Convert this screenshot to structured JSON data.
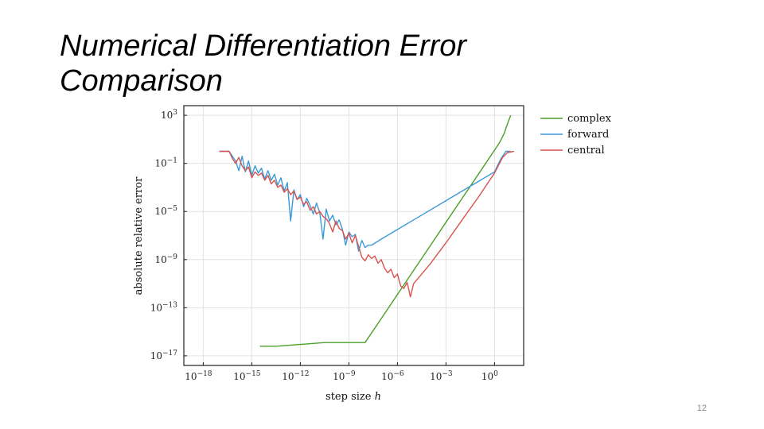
{
  "slide": {
    "title": "Numerical Differentiation Error Comparison",
    "page_number": "12"
  },
  "chart_data": {
    "type": "line",
    "title": "",
    "xlabel": "step size h",
    "ylabel": "absolute relative error",
    "xscale": "log",
    "yscale": "log",
    "xlim_exp": [
      -19.2,
      1.8
    ],
    "ylim_exp": [
      -17.8,
      3.8
    ],
    "x_ticks": [
      {
        "exp": -18,
        "label": "10",
        "sup": "−18"
      },
      {
        "exp": -15,
        "label": "10",
        "sup": "−15"
      },
      {
        "exp": -12,
        "label": "10",
        "sup": "−12"
      },
      {
        "exp": -9,
        "label": "10",
        "sup": "−9"
      },
      {
        "exp": -6,
        "label": "10",
        "sup": "−6"
      },
      {
        "exp": -3,
        "label": "10",
        "sup": "−3"
      },
      {
        "exp": 0,
        "label": "10",
        "sup": "0"
      }
    ],
    "y_ticks": [
      {
        "exp": 3,
        "label": "10",
        "sup": "3"
      },
      {
        "exp": -1,
        "label": "10",
        "sup": "−1"
      },
      {
        "exp": -5,
        "label": "10",
        "sup": "−5"
      },
      {
        "exp": -9,
        "label": "10",
        "sup": "−9"
      },
      {
        "exp": -13,
        "label": "10",
        "sup": "−13"
      },
      {
        "exp": -17,
        "label": "10",
        "sup": "−17"
      }
    ],
    "grid": true,
    "legend_position": "outside-top-right",
    "series": [
      {
        "name": "complex",
        "color": "#4aa02c",
        "points": [
          [
            -14.5,
            -16.2
          ],
          [
            -13.5,
            -16.2
          ],
          [
            -12.5,
            -16.1
          ],
          [
            -11.5,
            -16.0
          ],
          [
            -10.5,
            -15.9
          ],
          [
            -9.5,
            -15.9
          ],
          [
            -8.5,
            -15.9
          ],
          [
            -8.0,
            -15.9
          ],
          [
            -7.0,
            -13.9
          ],
          [
            -6.0,
            -11.9
          ],
          [
            -5.0,
            -9.9
          ],
          [
            -4.0,
            -7.9
          ],
          [
            -3.0,
            -5.9
          ],
          [
            -2.0,
            -3.9
          ],
          [
            -1.0,
            -1.9
          ],
          [
            0.0,
            0.1
          ],
          [
            0.3,
            0.7
          ],
          [
            0.6,
            1.5
          ],
          [
            0.8,
            2.3
          ],
          [
            1.0,
            3.0
          ]
        ]
      },
      {
        "name": "forward",
        "color": "#3a9ad9",
        "points": [
          [
            -17.0,
            0.0
          ],
          [
            -16.4,
            0.0
          ],
          [
            -16.2,
            -0.4
          ],
          [
            -16.0,
            -0.8
          ],
          [
            -15.8,
            -1.6
          ],
          [
            -15.6,
            -0.4
          ],
          [
            -15.4,
            -1.7
          ],
          [
            -15.2,
            -0.8
          ],
          [
            -15.0,
            -2.0
          ],
          [
            -14.8,
            -1.2
          ],
          [
            -14.6,
            -1.8
          ],
          [
            -14.4,
            -1.4
          ],
          [
            -14.2,
            -2.3
          ],
          [
            -14.0,
            -1.6
          ],
          [
            -13.8,
            -2.4
          ],
          [
            -13.6,
            -1.9
          ],
          [
            -13.4,
            -2.8
          ],
          [
            -13.2,
            -2.2
          ],
          [
            -13.0,
            -3.3
          ],
          [
            -12.8,
            -2.6
          ],
          [
            -12.6,
            -5.8
          ],
          [
            -12.4,
            -3.2
          ],
          [
            -12.2,
            -4.0
          ],
          [
            -12.0,
            -3.6
          ],
          [
            -11.8,
            -4.6
          ],
          [
            -11.6,
            -3.9
          ],
          [
            -11.4,
            -4.5
          ],
          [
            -11.2,
            -5.2
          ],
          [
            -11.0,
            -4.3
          ],
          [
            -10.8,
            -5.1
          ],
          [
            -10.6,
            -7.3
          ],
          [
            -10.4,
            -4.8
          ],
          [
            -10.2,
            -5.8
          ],
          [
            -10.0,
            -5.3
          ],
          [
            -9.8,
            -6.1
          ],
          [
            -9.6,
            -5.7
          ],
          [
            -9.4,
            -6.5
          ],
          [
            -9.2,
            -7.8
          ],
          [
            -9.0,
            -6.7
          ],
          [
            -8.8,
            -7.1
          ],
          [
            -8.6,
            -6.9
          ],
          [
            -8.4,
            -8.3
          ],
          [
            -8.2,
            -7.4
          ],
          [
            -8.0,
            -8.0
          ],
          [
            -7.8,
            -7.8
          ],
          [
            -7.6,
            -7.8
          ],
          [
            -7.0,
            -7.3
          ],
          [
            -6.0,
            -6.5
          ],
          [
            -5.0,
            -5.7
          ],
          [
            -4.0,
            -4.9
          ],
          [
            -3.0,
            -4.1
          ],
          [
            -2.0,
            -3.3
          ],
          [
            -1.0,
            -2.5
          ],
          [
            0.0,
            -1.7
          ],
          [
            0.4,
            -0.6
          ],
          [
            0.7,
            0.0
          ],
          [
            1.0,
            0.0
          ]
        ]
      },
      {
        "name": "central",
        "color": "#d9534f",
        "points": [
          [
            -17.0,
            0.0
          ],
          [
            -16.4,
            0.0
          ],
          [
            -16.2,
            -0.6
          ],
          [
            -16.0,
            -1.0
          ],
          [
            -15.8,
            -0.5
          ],
          [
            -15.6,
            -1.2
          ],
          [
            -15.4,
            -1.6
          ],
          [
            -15.2,
            -1.3
          ],
          [
            -15.0,
            -2.2
          ],
          [
            -14.8,
            -1.7
          ],
          [
            -14.6,
            -2.0
          ],
          [
            -14.4,
            -1.8
          ],
          [
            -14.2,
            -2.4
          ],
          [
            -14.0,
            -2.0
          ],
          [
            -13.8,
            -2.7
          ],
          [
            -13.6,
            -2.4
          ],
          [
            -13.4,
            -3.0
          ],
          [
            -13.2,
            -2.8
          ],
          [
            -13.0,
            -3.4
          ],
          [
            -12.8,
            -3.1
          ],
          [
            -12.6,
            -3.6
          ],
          [
            -12.4,
            -3.3
          ],
          [
            -12.2,
            -4.0
          ],
          [
            -12.0,
            -3.8
          ],
          [
            -11.8,
            -4.4
          ],
          [
            -11.6,
            -4.2
          ],
          [
            -11.4,
            -4.9
          ],
          [
            -11.2,
            -4.6
          ],
          [
            -11.0,
            -5.2
          ],
          [
            -10.8,
            -5.0
          ],
          [
            -10.6,
            -5.4
          ],
          [
            -10.4,
            -5.6
          ],
          [
            -10.2,
            -6.0
          ],
          [
            -10.0,
            -6.7
          ],
          [
            -9.8,
            -5.8
          ],
          [
            -9.6,
            -6.4
          ],
          [
            -9.4,
            -6.6
          ],
          [
            -9.2,
            -7.3
          ],
          [
            -9.0,
            -6.8
          ],
          [
            -8.8,
            -7.6
          ],
          [
            -8.6,
            -7.0
          ],
          [
            -8.4,
            -7.9
          ],
          [
            -8.2,
            -8.8
          ],
          [
            -8.0,
            -9.1
          ],
          [
            -7.8,
            -8.6
          ],
          [
            -7.6,
            -8.9
          ],
          [
            -7.4,
            -8.7
          ],
          [
            -7.2,
            -9.3
          ],
          [
            -7.0,
            -9.0
          ],
          [
            -6.8,
            -9.7
          ],
          [
            -6.6,
            -10.1
          ],
          [
            -6.4,
            -9.8
          ],
          [
            -6.2,
            -10.5
          ],
          [
            -6.0,
            -10.2
          ],
          [
            -5.8,
            -11.2
          ],
          [
            -5.6,
            -11.4
          ],
          [
            -5.4,
            -10.9
          ],
          [
            -5.2,
            -12.1
          ],
          [
            -5.0,
            -11.0
          ],
          [
            -4.0,
            -9.4
          ],
          [
            -3.0,
            -7.6
          ],
          [
            -2.0,
            -5.7
          ],
          [
            -1.0,
            -3.8
          ],
          [
            0.0,
            -1.8
          ],
          [
            0.5,
            -0.5
          ],
          [
            0.8,
            -0.1
          ],
          [
            1.2,
            0.0
          ]
        ]
      }
    ]
  }
}
